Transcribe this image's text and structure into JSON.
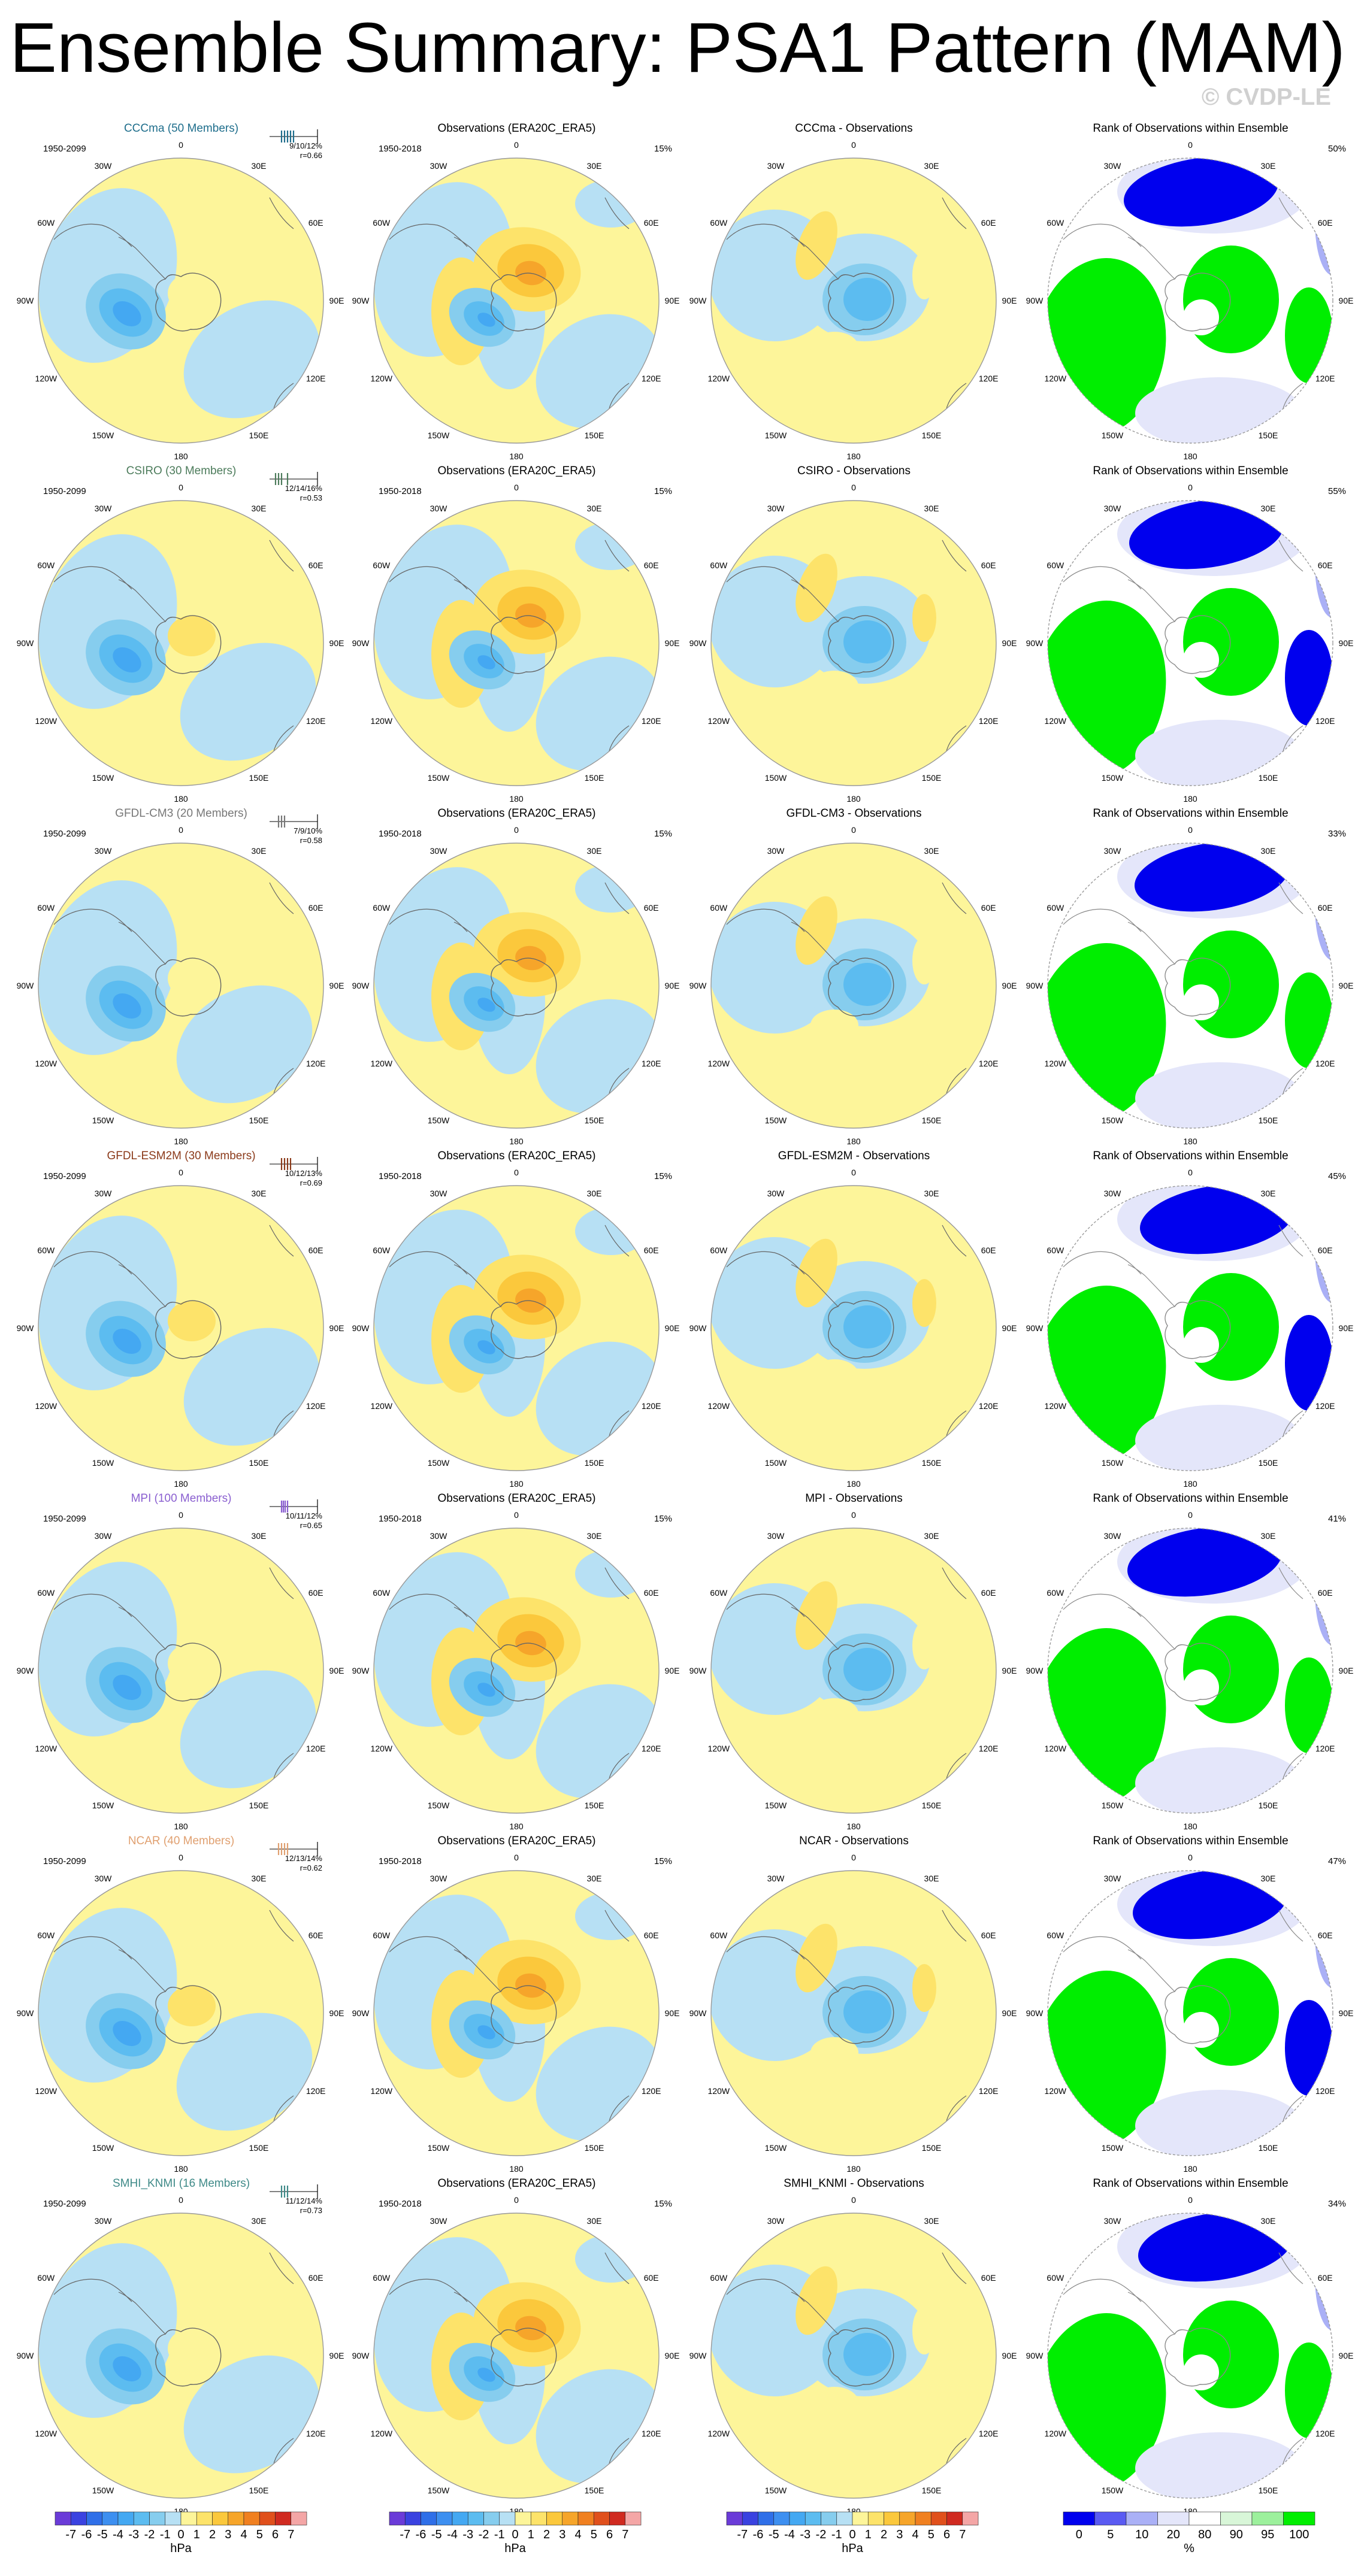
{
  "title": "Ensemble Summary: PSA1 Pattern (MAM)",
  "watermark": "© CVDP-LE",
  "obs_title": "Observations (ERA20C_ERA5)",
  "rank_title": "Rank of Observations within Ensemble",
  "obs_period": "1950-2018",
  "model_period": "1950-2099",
  "lon_labels": [
    "0",
    "30E",
    "60E",
    "90E",
    "120E",
    "150E",
    "180",
    "150W",
    "120W",
    "90W",
    "60W",
    "30W"
  ],
  "rows": [
    {
      "model": "CCCma (50 Members)",
      "model_color": "#1f6e8c",
      "stats": "9/10/12%",
      "r": "r=0.66",
      "diff_title": "CCCma - Observations",
      "obs_pct": "15%",
      "rank_pct": "50%",
      "ticks": [
        0.6,
        0.65,
        0.7,
        0.75,
        0.8
      ]
    },
    {
      "model": "CSIRO (30 Members)",
      "model_color": "#4d7c5c",
      "stats": "12/14/16%",
      "r": "r=0.53",
      "diff_title": "CSIRO - Observations",
      "obs_pct": "15%",
      "rank_pct": "55%",
      "ticks": [
        0.5,
        0.55,
        0.6,
        0.7
      ]
    },
    {
      "model": "GFDL-CM3 (20 Members)",
      "model_color": "#777777",
      "stats": "7/9/10%",
      "r": "r=0.58",
      "diff_title": "GFDL-CM3 - Observations",
      "obs_pct": "15%",
      "rank_pct": "33%",
      "ticks": [
        0.55,
        0.6,
        0.65
      ]
    },
    {
      "model": "GFDL-ESM2M (30 Members)",
      "model_color": "#8b3a1a",
      "stats": "10/12/13%",
      "r": "r=0.69",
      "diff_title": "GFDL-ESM2M - Observations",
      "obs_pct": "15%",
      "rank_pct": "45%",
      "ticks": [
        0.6,
        0.65,
        0.7,
        0.75
      ]
    },
    {
      "model": "MPI (100 Members)",
      "model_color": "#8a5fd0",
      "stats": "10/11/12%",
      "r": "r=0.65",
      "diff_title": "MPI - Observations",
      "obs_pct": "15%",
      "rank_pct": "41%",
      "ticks": [
        0.6,
        0.63,
        0.66,
        0.7
      ]
    },
    {
      "model": "NCAR (40 Members)",
      "model_color": "#e0a070",
      "stats": "12/13/14%",
      "r": "r=0.62",
      "diff_title": "NCAR - Observations",
      "obs_pct": "15%",
      "rank_pct": "47%",
      "ticks": [
        0.55,
        0.6,
        0.65,
        0.7
      ]
    },
    {
      "model": "SMHI_KNMI (16 Members)",
      "model_color": "#3f8a88",
      "stats": "11/12/14%",
      "r": "r=0.73",
      "diff_title": "SMHI_KNMI - Observations",
      "obs_pct": "15%",
      "rank_pct": "34%",
      "ticks": [
        0.6,
        0.65,
        0.7
      ]
    }
  ],
  "colorbar": {
    "unit": "hPa",
    "labels": [
      "-7",
      "-6",
      "-5",
      "-4",
      "-3",
      "-2",
      "-1",
      "0",
      "1",
      "2",
      "3",
      "4",
      "5",
      "6",
      "7"
    ],
    "colors": [
      "#6a3bd8",
      "#3a42e0",
      "#2f6fe8",
      "#3d8ff0",
      "#44a8f2",
      "#5cbcf0",
      "#86cdee",
      "#b7e0f4",
      "#fdf59a",
      "#fde36a",
      "#fbc83c",
      "#f6a52a",
      "#f08020",
      "#e0501c",
      "#d02a20",
      "#f4a6a6"
    ]
  },
  "rank_colorbar": {
    "unit": "%",
    "labels": [
      "0",
      "5",
      "10",
      "20",
      "80",
      "90",
      "95",
      "100"
    ],
    "colors": [
      "#0000ee",
      "#5a5af2",
      "#aab0f6",
      "#e4e6fa",
      "#ffffff",
      "#d8f6d8",
      "#9cf09c",
      "#00ee00"
    ]
  },
  "colors": {
    "pos_light": "#fdf59a",
    "neg_light": "#b7e0f4",
    "rank_green": "#00ee00",
    "rank_blue": "#0000ee"
  }
}
